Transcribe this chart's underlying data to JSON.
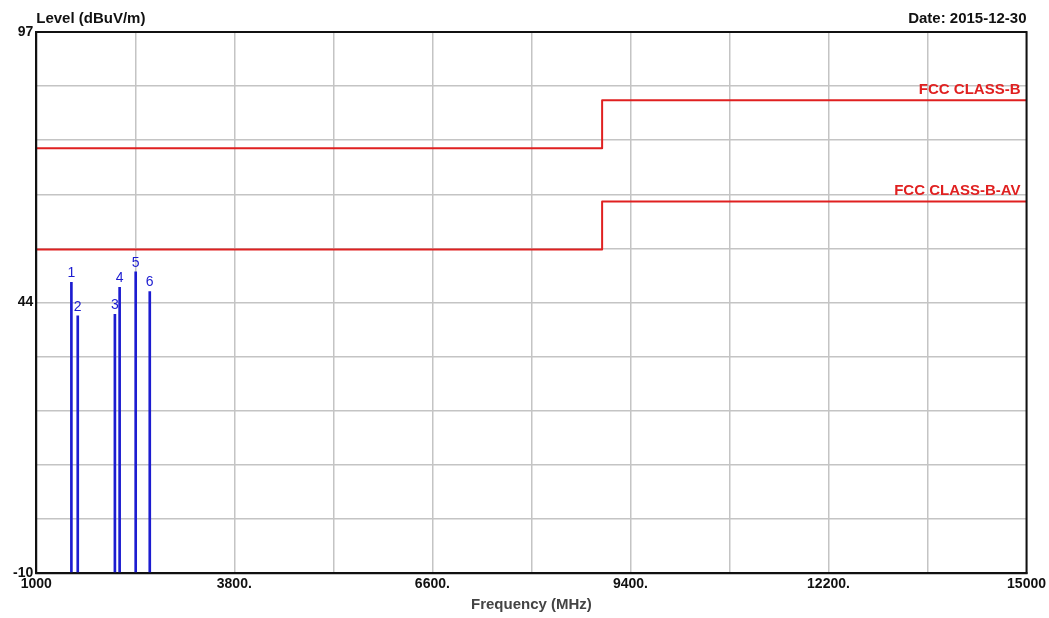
{
  "chart_data": {
    "type": "bar",
    "ylabel": "Level (dBuV/m)",
    "xlabel": "Frequency (MHz)",
    "annotations": [
      "Date: 2015-12-30",
      {
        "text": "1",
        "x": 1497,
        "y": 47.5
      },
      {
        "text": "2",
        "x": 1587,
        "y": 40.9
      },
      {
        "text": "3",
        "x": 2112,
        "y": 41.2
      },
      {
        "text": "4",
        "x": 2179,
        "y": 46.5
      },
      {
        "text": "5",
        "x": 2406,
        "y": 49.6
      },
      {
        "text": "6",
        "x": 2605,
        "y": 45.7
      }
    ],
    "xlim": [
      1000,
      15000
    ],
    "xticks": [
      1000,
      {
        "value": 2400,
        "label": null
      },
      {
        "value": 3800,
        "label": "3800."
      },
      {
        "value": 5200,
        "label": null
      },
      {
        "value": 6600,
        "label": "6600."
      },
      {
        "value": 8000,
        "label": null
      },
      {
        "value": 9400,
        "label": "9400."
      },
      {
        "value": 10800,
        "label": null
      },
      {
        "value": 12200,
        "label": "12200."
      },
      {
        "value": 13600,
        "label": null
      },
      15000
    ],
    "ylim": [
      -10,
      97
    ],
    "yticks": [
      -10,
      {
        "value": 0.7,
        "label": null
      },
      {
        "value": 11.4,
        "label": null
      },
      {
        "value": 22.1,
        "label": null
      },
      {
        "value": 32.8,
        "label": null
      },
      {
        "value": 43.5,
        "label": "44"
      },
      {
        "value": 54.2,
        "label": null
      },
      {
        "value": 64.9,
        "label": null
      },
      {
        "value": 75.6,
        "label": null
      },
      {
        "value": 86.3,
        "label": null
      },
      97
    ],
    "grid": true,
    "legend": false,
    "series": [
      {
        "color": "#1c1cd0",
        "x": [
          1497,
          1587,
          2112,
          2179,
          2406,
          2605
        ],
        "base": [
          -10,
          -10,
          -10,
          -10,
          -10,
          -10
        ],
        "values": [
          57.5,
          50.9,
          51.2,
          56.5,
          59.6,
          55.7
        ]
      },
      {
        "type": "step",
        "name": "FCC CLASS-B",
        "color": "#e02020",
        "x": [
          1000,
          9000,
          15000
        ],
        "values": [
          74,
          83.5,
          83.5
        ]
      },
      {
        "type": "step",
        "name": "FCC CLASS-B-AV",
        "color": "#e02020",
        "x": [
          1000,
          9000,
          15000
        ],
        "values": [
          54,
          63.5,
          63.5
        ]
      }
    ]
  }
}
